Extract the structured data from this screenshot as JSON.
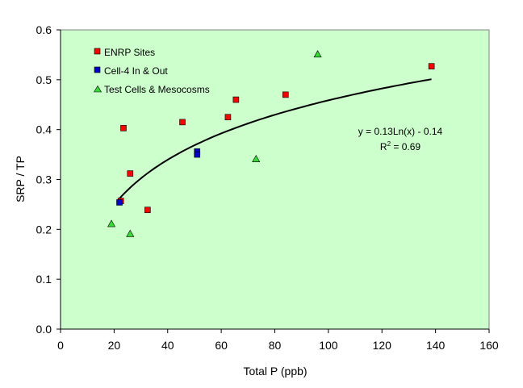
{
  "chart_data": {
    "type": "scatter",
    "title": "",
    "xlabel": "Total P (ppb)",
    "ylabel": "SRP / TP",
    "xlim": [
      0,
      160
    ],
    "ylim": [
      0,
      0.6
    ],
    "x_ticks": [
      0,
      20,
      40,
      60,
      80,
      100,
      120,
      140,
      160
    ],
    "y_ticks": [
      0.0,
      0.1,
      0.2,
      0.3,
      0.4,
      0.5,
      0.6
    ],
    "x_tick_labels": [
      "0",
      "20",
      "40",
      "60",
      "80",
      "100",
      "120",
      "140",
      "160"
    ],
    "y_tick_labels": [
      "0.0",
      "0.1",
      "0.2",
      "0.3",
      "0.4",
      "0.5",
      "0.6"
    ],
    "grid": false,
    "plot_background": "#ccffcc",
    "legend_position": "top-left",
    "series": [
      {
        "name": "ENRP Sites",
        "marker": "square",
        "color": "#ff0000",
        "points": [
          {
            "x": 23.5,
            "y": 0.403
          },
          {
            "x": 22.5,
            "y": 0.257
          },
          {
            "x": 26,
            "y": 0.312
          },
          {
            "x": 32.5,
            "y": 0.239
          },
          {
            "x": 45.5,
            "y": 0.415
          },
          {
            "x": 62.5,
            "y": 0.425
          },
          {
            "x": 65.5,
            "y": 0.46
          },
          {
            "x": 84,
            "y": 0.47
          },
          {
            "x": 138.5,
            "y": 0.527
          }
        ]
      },
      {
        "name": "Cell-4 In & Out",
        "marker": "square",
        "color": "#0000cc",
        "points": [
          {
            "x": 22,
            "y": 0.254
          },
          {
            "x": 51,
            "y": 0.356
          },
          {
            "x": 51,
            "y": 0.35
          }
        ]
      },
      {
        "name": "Test Cells & Mesocosms",
        "marker": "triangle",
        "color": "#33dd33",
        "points": [
          {
            "x": 96,
            "y": 0.551
          },
          {
            "x": 73,
            "y": 0.341
          },
          {
            "x": 19,
            "y": 0.211
          },
          {
            "x": 26,
            "y": 0.191
          }
        ]
      }
    ],
    "trendline": {
      "type": "logarithmic",
      "a": 0.13,
      "b": -0.14,
      "x_range": [
        22,
        138.5
      ],
      "color": "#000000"
    },
    "annotation": {
      "equation": "y = 0.13Ln(x) - 0.14",
      "r2_prefix": "R",
      "r2_sup": "2",
      "r2_suffix": " = 0.69"
    }
  }
}
